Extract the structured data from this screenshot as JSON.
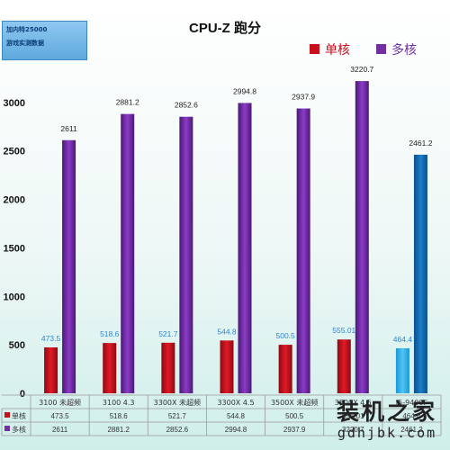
{
  "badge": {
    "line1": "加内特25000",
    "line2": "游戏实测数据"
  },
  "watermark": {
    "title": "装机之家",
    "url": "gdhjbk.com"
  },
  "chart_data": {
    "type": "bar",
    "title": "CPU-Z 跑分",
    "categories": [
      "3100 未超频",
      "3100 4.3",
      "3300X 未超频",
      "3300X 4.5",
      "3500X 未超频",
      "3500X 4.5",
      "I5-9400F"
    ],
    "series": [
      {
        "name": "单核",
        "values": [
          473.5,
          518.6,
          521.7,
          544.8,
          500.5,
          555.01,
          464.4
        ],
        "labels": [
          "473.5",
          "518.6",
          "521.7",
          "544.8",
          "500.5",
          "555.01",
          "464.4"
        ],
        "table": [
          "473.5",
          "518.6",
          "521.7",
          "544.8",
          "500.5",
          "555.01",
          "464.4"
        ],
        "color": "#c8101c",
        "last_color": "#29a8e6"
      },
      {
        "name": "多核",
        "values": [
          2611,
          2881.2,
          2852.6,
          2994.8,
          2937.9,
          3220.7,
          2461.2
        ],
        "labels": [
          "2611",
          "2881.2",
          "2852.6",
          "2994.8",
          "2937.9",
          "3220.7",
          "2461.2"
        ],
        "table": [
          "2611",
          "2881.2",
          "2852.6",
          "2994.8",
          "2937.9",
          "3220.7",
          "2461.2"
        ],
        "color": "#7030a0",
        "last_color": "#1264a8"
      }
    ],
    "yticks": [
      "0",
      "500",
      "1000",
      "1500",
      "2000",
      "2500",
      "3000",
      "3500"
    ],
    "ylim": [
      0,
      3500
    ],
    "grid": false,
    "legend_position": "top-right",
    "data_table": true,
    "label_colors": {
      "single": "#2e86d6",
      "multi": "#222222"
    }
  }
}
